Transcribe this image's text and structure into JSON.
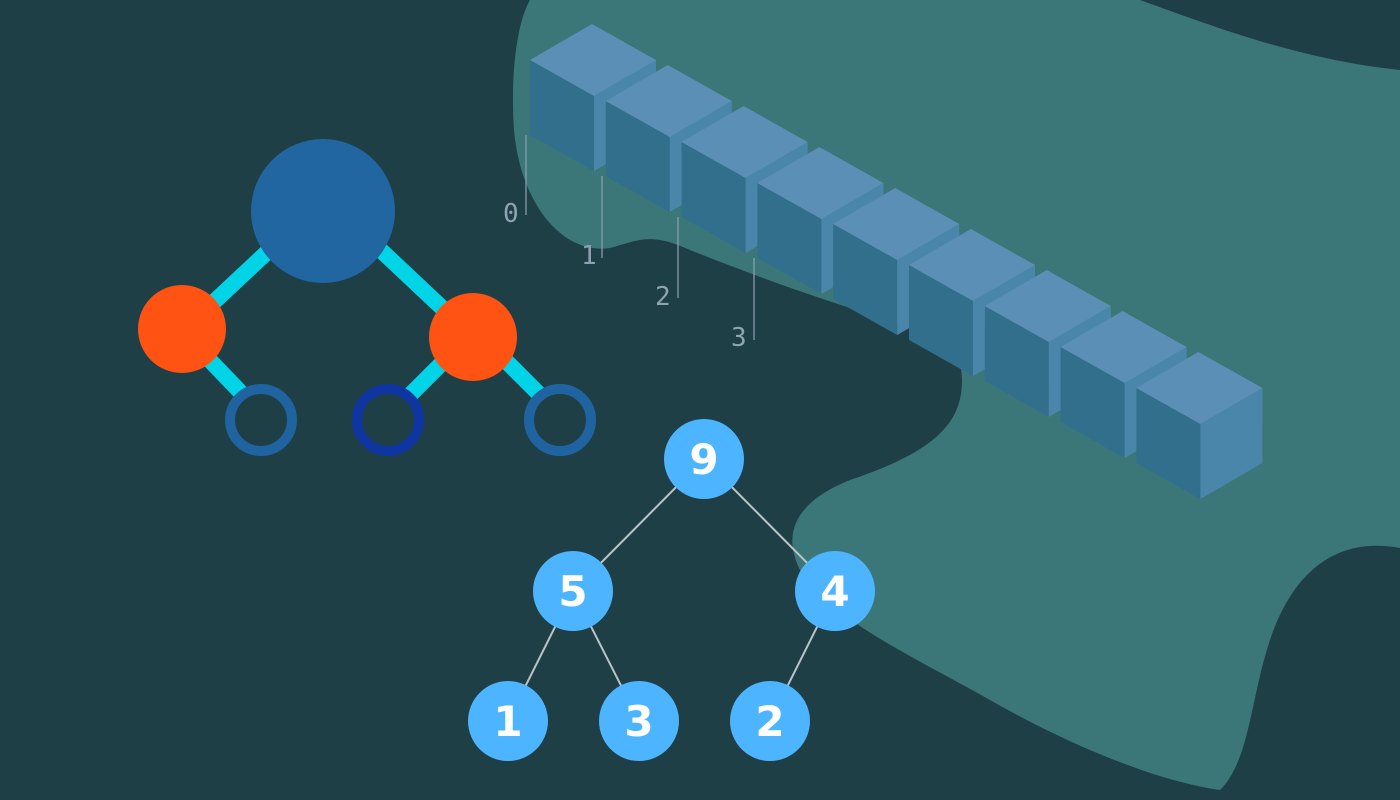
{
  "colors": {
    "background": "#1f3f47",
    "blob": "#3b7778",
    "cube_top": "#5b8fb5",
    "cube_front": "#316f8c",
    "cube_side": "#4a86aa",
    "tree_root": "#2166a0",
    "tree_child": "#ff5314",
    "tree_edge": "#00d4e6",
    "tree_leaf_ring": "#1f64a0",
    "tree_leaf_ring_dark": "#0f35a0",
    "heap_node": "#4db5ff",
    "heap_edge": "#b8c4c8",
    "index_label": "#8fa3b3"
  },
  "array": {
    "cell_count": 9,
    "index_labels": [
      "0",
      "1",
      "2",
      "3"
    ]
  },
  "abstract_tree": {
    "root_icon": "filled-circle-icon",
    "child_icon": "filled-circle-icon",
    "leaf_icon": "ring-icon",
    "leaf_count": 3
  },
  "heap_tree": {
    "nodes": [
      {
        "id": "n9",
        "value": "9"
      },
      {
        "id": "n5",
        "value": "5"
      },
      {
        "id": "n4",
        "value": "4"
      },
      {
        "id": "n1",
        "value": "1"
      },
      {
        "id": "n3",
        "value": "3"
      },
      {
        "id": "n2",
        "value": "2"
      }
    ],
    "edges": [
      [
        "n9",
        "n5"
      ],
      [
        "n9",
        "n4"
      ],
      [
        "n5",
        "n1"
      ],
      [
        "n5",
        "n3"
      ],
      [
        "n4",
        "n2"
      ]
    ]
  }
}
